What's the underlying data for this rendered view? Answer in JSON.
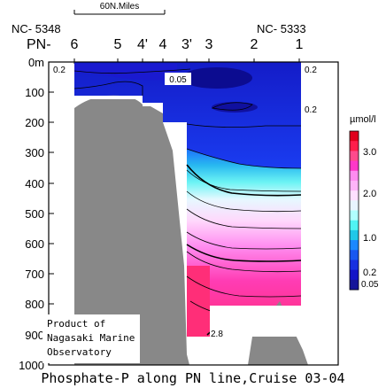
{
  "chart_data": {
    "type": "heatmap",
    "title": "Phosphate-P along PN line,Cruise 03-04",
    "scale_bar_label": "60N.Miles",
    "stations": [
      "6",
      "5",
      "4'",
      "4",
      "3'",
      "3",
      "2",
      "1"
    ],
    "station_prefix": "PN-",
    "left_station_code": "NC- 5348",
    "right_station_code": "NC- 5333",
    "y_ticks": [
      "0m",
      "100",
      "200",
      "300",
      "400",
      "500",
      "600",
      "700",
      "800",
      "900",
      "1000"
    ],
    "ylim": [
      0,
      1000
    ],
    "contour_labels": [
      "0.2",
      "0.05",
      "0.2",
      "0.2",
      "2.8"
    ],
    "colorbar": {
      "unit": "µmol/l",
      "tick_labels": [
        "3.0",
        "2.0",
        "1.0",
        "0.2",
        "0.05"
      ],
      "tick_values": [
        3.0,
        2.0,
        1.0,
        0.2,
        0.05
      ],
      "colors": [
        "#e0001c",
        "#ff1e4a",
        "#ff4a8c",
        "#ff38c8",
        "#ff8cf0",
        "#ffb4f8",
        "#ffe0ff",
        "#e8f4ff",
        "#b0ffff",
        "#50f4f4",
        "#20c8e8",
        "#1c88ff",
        "#1858f0",
        "#1830e0",
        "#1414c8",
        "#14149a"
      ]
    },
    "attribution": [
      "Product of",
      "Nagasaki Marine",
      "Observatory"
    ]
  }
}
